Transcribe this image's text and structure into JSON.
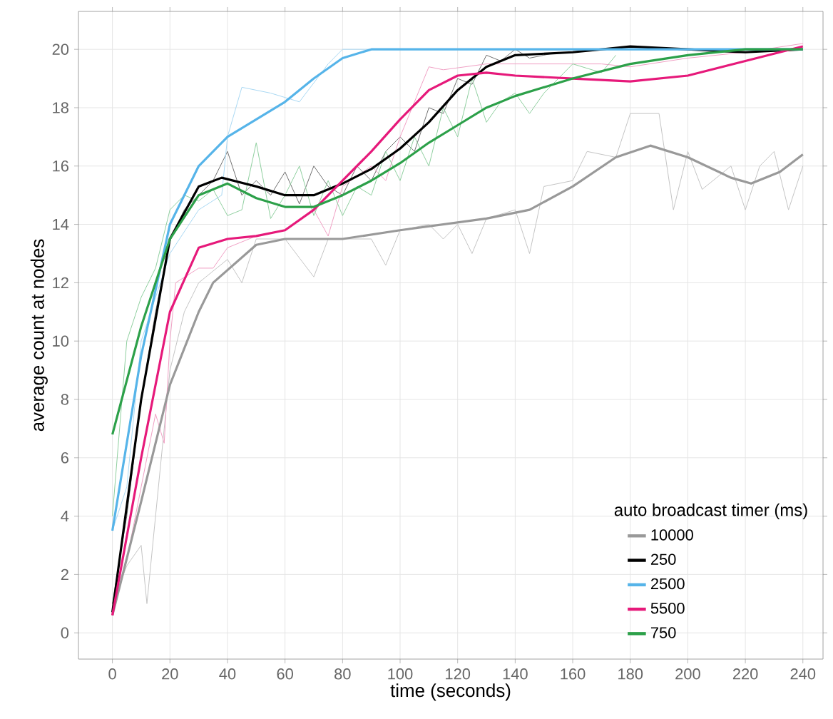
{
  "chart_data": {
    "type": "line",
    "xlabel": "time (seconds)",
    "ylabel": "average count at nodes",
    "legend_title": "auto broadcast timer (ms)",
    "xlim": [
      -11.8,
      247
    ],
    "ylim": [
      -0.9,
      21.3
    ],
    "xticks": [
      0,
      20,
      40,
      60,
      80,
      100,
      120,
      140,
      160,
      180,
      200,
      220,
      240
    ],
    "yticks": [
      0,
      2,
      4,
      6,
      8,
      10,
      12,
      14,
      16,
      18,
      20
    ],
    "grid": true,
    "legend": "bottom right",
    "series": [
      {
        "color": "#c4c4c4",
        "x": [
          0,
          5,
          10,
          12,
          20,
          25,
          30,
          40,
          45,
          50,
          60,
          70,
          75,
          90,
          95,
          100,
          110,
          115,
          120,
          125,
          130,
          140,
          145,
          150,
          160,
          165,
          175,
          180,
          190,
          195,
          200,
          205,
          215,
          220,
          225,
          230,
          235,
          240
        ],
        "values": [
          1,
          2.3,
          3,
          1,
          9,
          11,
          12,
          12.8,
          12,
          13.5,
          13.5,
          12.2,
          13.5,
          13.5,
          12.6,
          13.8,
          14,
          13.5,
          14,
          13,
          14.2,
          14.5,
          13,
          15.3,
          15.5,
          16.5,
          16.3,
          17.8,
          17.8,
          14.5,
          16.5,
          15.2,
          16,
          14.5,
          16,
          16.5,
          14.5,
          16
        ]
      },
      {
        "color": "#707070",
        "x": [
          0,
          5,
          10,
          15,
          20,
          25,
          30,
          35,
          40,
          45,
          50,
          55,
          60,
          65,
          70,
          75,
          80,
          85,
          90,
          95,
          100,
          105,
          110,
          115,
          120,
          125,
          130,
          135,
          140,
          145,
          150,
          155
        ],
        "values": [
          1,
          4,
          8,
          11,
          13.5,
          14.5,
          15,
          15.5,
          16.5,
          15,
          15.5,
          15,
          15.8,
          14.7,
          16,
          15.3,
          15,
          16,
          15.5,
          16.5,
          17,
          16.5,
          18,
          17.8,
          19,
          18.8,
          19.8,
          19.6,
          20,
          19.7,
          19.8,
          19.9
        ]
      },
      {
        "color": "#a9d8f3",
        "x": [
          0,
          5,
          10,
          20,
          30,
          38,
          40,
          45,
          55,
          65,
          75,
          80,
          90
        ],
        "values": [
          3.5,
          5,
          10,
          13,
          14.5,
          15,
          17,
          18.7,
          18.5,
          18.2,
          19.5,
          20,
          20
        ]
      },
      {
        "color": "#f0a0c4",
        "x": [
          0,
          5,
          10,
          15,
          18,
          20,
          22,
          30,
          35,
          40,
          50,
          60,
          70,
          75,
          80,
          90,
          95,
          100,
          110,
          115,
          130,
          150,
          170,
          180,
          200,
          220,
          240
        ],
        "values": [
          0.6,
          2.5,
          5,
          7.5,
          6.5,
          10,
          12,
          12.5,
          12.5,
          13.2,
          13.6,
          13.8,
          14.5,
          13.6,
          15.3,
          16,
          15.5,
          17,
          19.4,
          19.3,
          19.5,
          19.5,
          19.5,
          19.4,
          19.7,
          19.9,
          20.2
        ]
      },
      {
        "color": "#8fcf9f",
        "x": [
          0,
          5,
          10,
          15,
          20,
          25,
          30,
          35,
          40,
          45,
          50,
          55,
          60,
          65,
          70,
          75,
          80,
          85,
          90,
          95,
          100,
          105,
          110,
          115,
          120,
          125,
          130,
          135,
          140,
          145,
          150,
          160,
          170,
          175
        ],
        "values": [
          4,
          10,
          11.5,
          12.5,
          14.5,
          15,
          14.8,
          15.2,
          14.3,
          14.5,
          16.8,
          14.2,
          15,
          16,
          14.3,
          15.5,
          14.3,
          15.3,
          15,
          16.5,
          15.5,
          17,
          16,
          18,
          17,
          19,
          17.5,
          18.2,
          18.5,
          17.8,
          18.5,
          19.5,
          19.2,
          19.8
        ]
      },
      {
        "name": "10000",
        "color": "#999999",
        "x": [
          0,
          10,
          20,
          30,
          35,
          50,
          60,
          80,
          100,
          130,
          145,
          160,
          175,
          187,
          200,
          215,
          222,
          232,
          240
        ],
        "values": [
          0.6,
          4.5,
          8.5,
          11,
          12,
          13.3,
          13.5,
          13.5,
          13.8,
          14.2,
          14.5,
          15.3,
          16.3,
          16.7,
          16.3,
          15.6,
          15.4,
          15.8,
          16.4
        ]
      },
      {
        "name": "250",
        "color": "#000000",
        "x": [
          0,
          10,
          20,
          30,
          38,
          50,
          60,
          70,
          80,
          90,
          100,
          110,
          120,
          130,
          140,
          160,
          180,
          200,
          220,
          240
        ],
        "values": [
          0.7,
          8,
          13.5,
          15.3,
          15.6,
          15.3,
          15,
          15,
          15.4,
          15.9,
          16.6,
          17.5,
          18.6,
          19.4,
          19.8,
          19.9,
          20.1,
          20,
          19.9,
          20
        ]
      },
      {
        "name": "2500",
        "color": "#56b4e9",
        "x": [
          0,
          10,
          20,
          30,
          40,
          50,
          60,
          70,
          80,
          90,
          100,
          240
        ],
        "values": [
          3.5,
          9.5,
          14,
          16,
          17,
          17.6,
          18.2,
          19,
          19.7,
          20,
          20,
          20
        ]
      },
      {
        "name": "5500",
        "color": "#e6197a",
        "x": [
          0,
          10,
          20,
          30,
          40,
          50,
          60,
          70,
          80,
          90,
          100,
          110,
          120,
          130,
          140,
          160,
          180,
          200,
          220,
          240
        ],
        "values": [
          0.6,
          6,
          11,
          13.2,
          13.5,
          13.6,
          13.8,
          14.5,
          15.5,
          16.5,
          17.6,
          18.6,
          19.1,
          19.2,
          19.1,
          19,
          18.9,
          19.1,
          19.6,
          20.1
        ]
      },
      {
        "name": "750",
        "color": "#2ca049",
        "x": [
          0,
          10,
          20,
          30,
          40,
          50,
          60,
          70,
          80,
          90,
          100,
          110,
          120,
          130,
          140,
          160,
          180,
          200,
          220,
          240
        ],
        "values": [
          6.8,
          10.5,
          13.5,
          15,
          15.4,
          14.9,
          14.6,
          14.6,
          15,
          15.5,
          16.1,
          16.8,
          17.4,
          18,
          18.4,
          19,
          19.5,
          19.8,
          20,
          20
        ]
      }
    ]
  }
}
